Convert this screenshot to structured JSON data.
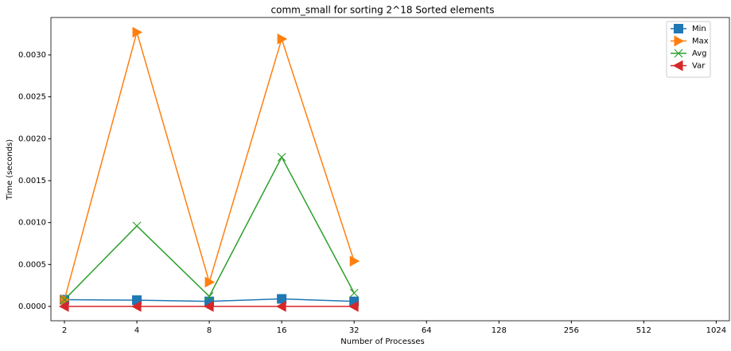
{
  "chart_data": {
    "type": "line",
    "title": "comm_small for sorting 2^18 Sorted elements",
    "xlabel": "Number of Processes",
    "ylabel": "Time (seconds)",
    "x": [
      2,
      4,
      8,
      16,
      32
    ],
    "xscale": "log2",
    "xlim": [
      1.757,
      1162
    ],
    "xticks": [
      2,
      4,
      8,
      16,
      32,
      64,
      128,
      256,
      512,
      1024
    ],
    "ylim": [
      -0.000171,
      0.003446
    ],
    "yticks": [
      {
        "value": 0,
        "label": "0.0000"
      },
      {
        "value": 0.0005,
        "label": "0.0005"
      },
      {
        "value": 0.001,
        "label": "0.0010"
      },
      {
        "value": 0.0015,
        "label": "0.0015"
      },
      {
        "value": 0.002,
        "label": "0.0020"
      },
      {
        "value": 0.0025,
        "label": "0.0025"
      },
      {
        "value": 0.003,
        "label": "0.0030"
      }
    ],
    "legend": "upper right",
    "series": [
      {
        "name": "Min",
        "color": "#1f77b4",
        "marker": "square",
        "values": [
          8e-05,
          7.5e-05,
          6e-05,
          9e-05,
          6e-05
        ]
      },
      {
        "name": "Max",
        "color": "#ff7f0e",
        "marker": "triangle-right",
        "values": [
          8e-05,
          0.00327,
          0.00029,
          0.00319,
          0.00054
        ]
      },
      {
        "name": "Avg",
        "color": "#2ca02c",
        "marker": "x",
        "values": [
          8e-05,
          0.00096,
          0.00012,
          0.00178,
          0.00016
        ]
      },
      {
        "name": "Var",
        "color": "#d62728",
        "marker": "triangle-left",
        "values": [
          0,
          0,
          0,
          0,
          0
        ]
      }
    ]
  }
}
